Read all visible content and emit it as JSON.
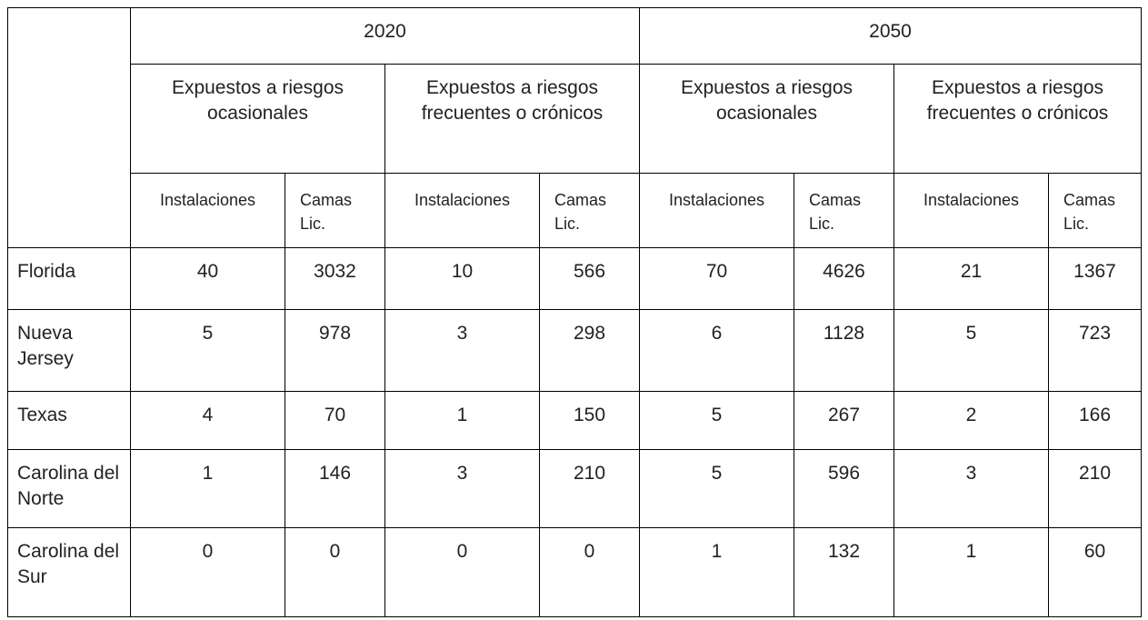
{
  "table": {
    "years": [
      "2020",
      "2050"
    ],
    "groups": [
      "Expuestos a riesgos ocasionales",
      "Expuestos a riesgos frecuentes o crónicos",
      "Expuestos a riesgos ocasionales",
      "Expuestos a riesgos frecuentes o crónicos"
    ],
    "subheaders": [
      "Instalaciones",
      "Camas Lic.",
      "Instalaciones",
      "Camas Lic.",
      "Instalaciones",
      "Camas Lic.",
      "Instalaciones",
      "Camas Lic."
    ],
    "rows": [
      [
        "Florida",
        40,
        3032,
        10,
        566,
        70,
        4626,
        21,
        1367
      ],
      [
        "Nueva Jersey",
        5,
        978,
        3,
        298,
        6,
        1128,
        5,
        723
      ],
      [
        "Texas",
        4,
        70,
        1,
        150,
        5,
        267,
        2,
        166
      ],
      [
        "Carolina del Norte",
        1,
        146,
        3,
        210,
        5,
        596,
        3,
        210
      ],
      [
        "Carolina del Sur",
        0,
        0,
        0,
        0,
        1,
        132,
        1,
        60
      ]
    ]
  }
}
